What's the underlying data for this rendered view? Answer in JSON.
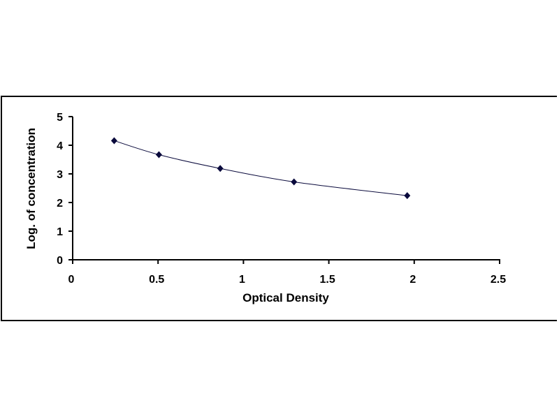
{
  "chart_data": {
    "type": "scatter",
    "title": "",
    "xlabel": "Optical Density",
    "ylabel": "Log. of concentration",
    "xlim": [
      0,
      2.5
    ],
    "ylim": [
      0,
      5
    ],
    "xticks": [
      0,
      0.5,
      1,
      1.5,
      2,
      2.5
    ],
    "xtick_labels": [
      "0",
      "0.5",
      "1",
      "1.5",
      "2",
      "2.5"
    ],
    "yticks": [
      0,
      1,
      2,
      3,
      4,
      5
    ],
    "ytick_labels": [
      "0",
      "1",
      "2",
      "3",
      "4",
      "5"
    ],
    "grid": false,
    "legend": "none",
    "marker": "diamond",
    "series": [
      {
        "x": [
          0.243,
          0.505,
          0.864,
          1.296,
          1.959
        ],
        "y": [
          4.16,
          3.67,
          3.19,
          2.72,
          2.24
        ],
        "fit": "smooth curve",
        "color": "#0a0a3c"
      }
    ]
  }
}
